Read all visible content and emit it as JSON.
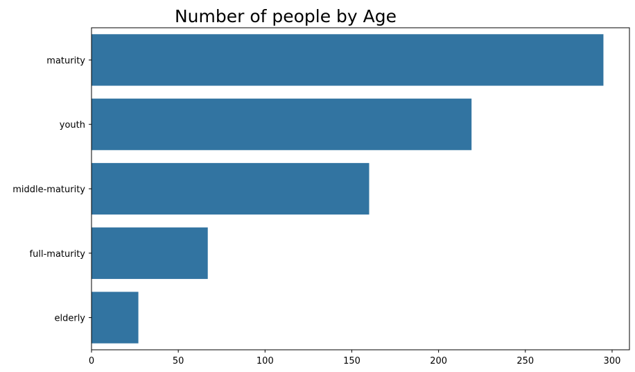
{
  "chart_data": {
    "type": "bar",
    "orientation": "horizontal",
    "title": "Number of people by Age",
    "xlabel": "",
    "ylabel": "",
    "categories": [
      "maturity",
      "youth",
      "middle-maturity",
      "full-maturity",
      "elderly"
    ],
    "values": [
      295,
      219,
      160,
      67,
      27
    ],
    "xlim": [
      0,
      310
    ],
    "xticks": [
      0,
      50,
      100,
      150,
      200,
      250,
      300
    ],
    "bar_color": "#3274a1",
    "grid": false,
    "legend": "none"
  }
}
